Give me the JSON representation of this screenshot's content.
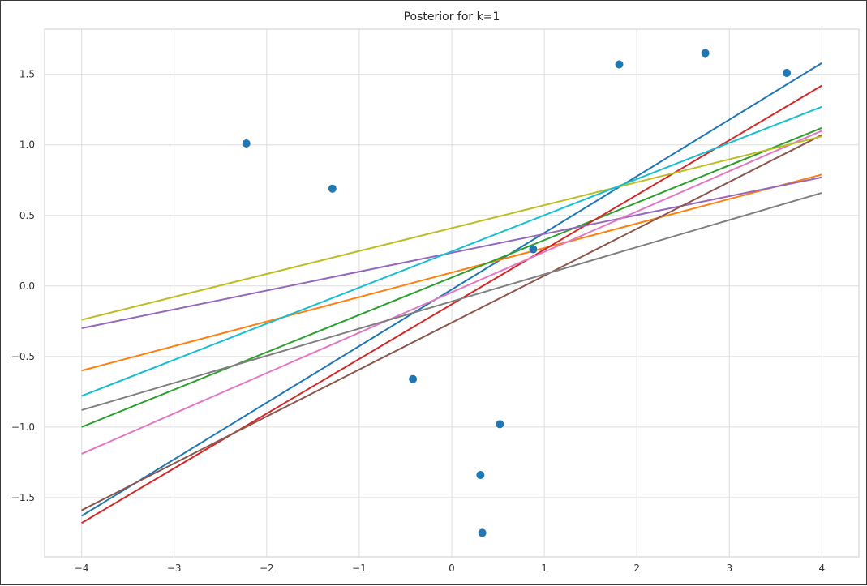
{
  "chart_data": {
    "type": "line",
    "title": "Posterior for k=1",
    "xlabel": "",
    "ylabel": "",
    "xlim": [
      -4.4,
      4.4
    ],
    "ylim": [
      -1.92,
      1.82
    ],
    "xticks": [
      -4,
      -3,
      -2,
      -1,
      0,
      1,
      2,
      3,
      4
    ],
    "yticks": [
      -1.5,
      -1.0,
      -0.5,
      0.0,
      0.5,
      1.0,
      1.5
    ],
    "xtick_labels": [
      "−4",
      "−3",
      "−2",
      "−1",
      "0",
      "1",
      "2",
      "3",
      "4"
    ],
    "ytick_labels": [
      "−1.5",
      "−1.0",
      "−0.5",
      "0.0",
      "0.5",
      "1.0",
      "1.5"
    ],
    "grid": true,
    "legend": "none",
    "series": [
      {
        "color": "#1f77b4",
        "x": [
          -4,
          4
        ],
        "y": [
          -1.63,
          1.58
        ]
      },
      {
        "color": "#ff7f0e",
        "x": [
          -4,
          4
        ],
        "y": [
          -0.6,
          0.79
        ]
      },
      {
        "color": "#2ca02c",
        "x": [
          -4,
          4
        ],
        "y": [
          -1.0,
          1.12
        ]
      },
      {
        "color": "#d62728",
        "x": [
          -4,
          4
        ],
        "y": [
          -1.68,
          1.42
        ]
      },
      {
        "color": "#9467bd",
        "x": [
          -4,
          4
        ],
        "y": [
          -0.3,
          0.77
        ]
      },
      {
        "color": "#8c564b",
        "x": [
          -4,
          4
        ],
        "y": [
          -1.59,
          1.07
        ]
      },
      {
        "color": "#e377c2",
        "x": [
          -4,
          4
        ],
        "y": [
          -1.19,
          1.1
        ]
      },
      {
        "color": "#7f7f7f",
        "x": [
          -4,
          4
        ],
        "y": [
          -0.88,
          0.66
        ]
      },
      {
        "color": "#bcbd22",
        "x": [
          -4,
          4
        ],
        "y": [
          -0.24,
          1.06
        ]
      },
      {
        "color": "#17becf",
        "x": [
          -4,
          4
        ],
        "y": [
          -0.78,
          1.27
        ]
      }
    ],
    "scatter": {
      "color": "#1f77b4",
      "x": [
        -2.22,
        -1.29,
        -0.42,
        0.31,
        0.33,
        0.52,
        0.88,
        1.81,
        2.74,
        3.62
      ],
      "y": [
        1.01,
        0.69,
        -0.66,
        -1.34,
        -1.75,
        -0.98,
        0.26,
        1.57,
        1.65,
        1.51
      ]
    }
  }
}
